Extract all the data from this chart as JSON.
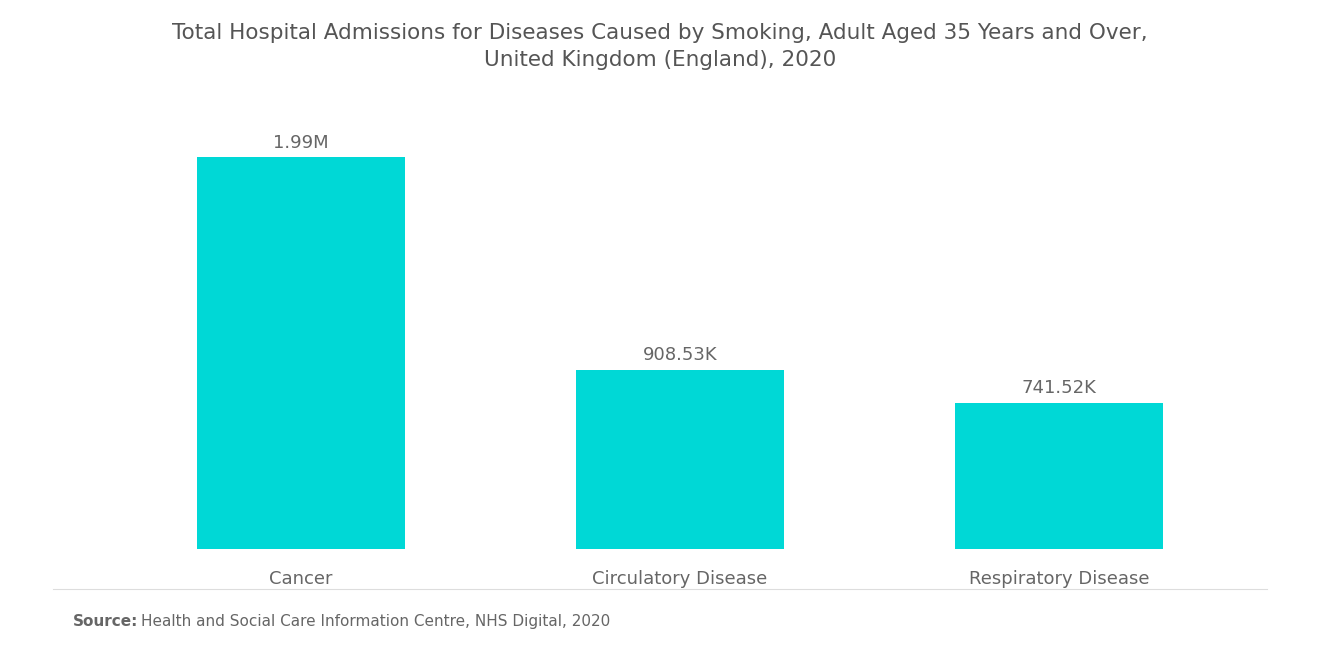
{
  "title_line1": "Total Hospital Admissions for Diseases Caused by Smoking, Adult Aged 35 Years and Over,",
  "title_line2": "United Kingdom (England), 2020",
  "categories": [
    "Cancer",
    "Circulatory Disease",
    "Respiratory Disease"
  ],
  "values": [
    1990000,
    908530,
    741520
  ],
  "labels": [
    "1.99M",
    "908.53K",
    "741.52K"
  ],
  "bar_color": "#00D8D6",
  "title_color": "#555555",
  "label_color": "#666666",
  "xtick_color": "#666666",
  "source_bold": "Source:",
  "source_text": "  Health and Social Care Information Centre, NHS Digital, 2020",
  "background_color": "#ffffff",
  "title_fontsize": 15.5,
  "label_fontsize": 13,
  "xtick_fontsize": 13,
  "source_fontsize": 11,
  "ylim": [
    0,
    2300000
  ],
  "bar_positions": [
    0,
    1,
    2
  ],
  "bar_width": 0.55
}
